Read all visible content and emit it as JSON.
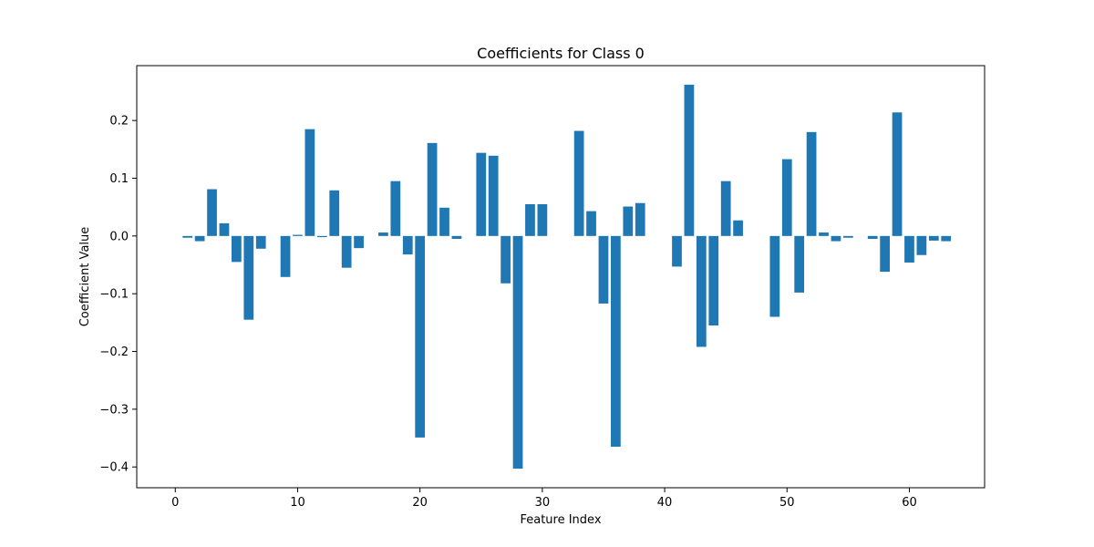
{
  "chart_data": {
    "type": "bar",
    "title": "Coefficients for Class 0",
    "xlabel": "Feature Index",
    "ylabel": "Coefficient Value",
    "x": [
      0,
      1,
      2,
      3,
      4,
      5,
      6,
      7,
      8,
      9,
      10,
      11,
      12,
      13,
      14,
      15,
      16,
      17,
      18,
      19,
      20,
      21,
      22,
      23,
      24,
      25,
      26,
      27,
      28,
      29,
      30,
      31,
      32,
      33,
      34,
      35,
      36,
      37,
      38,
      39,
      40,
      41,
      42,
      43,
      44,
      45,
      46,
      47,
      48,
      49,
      50,
      51,
      52,
      53,
      54,
      55,
      56,
      57,
      58,
      59,
      60,
      61,
      62,
      63
    ],
    "values": [
      0,
      -0.003,
      -0.009,
      0.081,
      0.022,
      -0.045,
      -0.145,
      -0.022,
      0,
      -0.071,
      0.002,
      0.185,
      -0.002,
      0.079,
      -0.055,
      -0.021,
      0,
      0.006,
      0.095,
      -0.032,
      -0.349,
      0.161,
      0.049,
      -0.005,
      0,
      0.144,
      0.139,
      -0.082,
      -0.403,
      0.055,
      0.055,
      0,
      0,
      0.182,
      0.043,
      -0.117,
      -0.365,
      0.051,
      0.057,
      0,
      0,
      -0.053,
      0.262,
      -0.192,
      -0.155,
      0.095,
      0.027,
      0,
      0,
      -0.14,
      0.133,
      -0.098,
      0.18,
      0.006,
      -0.009,
      -0.003,
      0,
      -0.005,
      -0.062,
      0.214,
      -0.046,
      -0.033,
      -0.008,
      -0.009
    ],
    "xlim": [
      -3.15,
      66.15
    ],
    "ylim": [
      -0.436,
      0.295
    ],
    "xticks": [
      0,
      10,
      20,
      30,
      40,
      50,
      60
    ],
    "yticks": [
      -0.4,
      -0.3,
      -0.2,
      -0.1,
      0.0,
      0.1,
      0.2
    ],
    "ytick_labels": [
      "−0.4",
      "−0.3",
      "−0.2",
      "−0.1",
      "0.0",
      "0.1",
      "0.2"
    ],
    "bar_color": "#1f77b4",
    "grid": false,
    "legend": "none"
  }
}
